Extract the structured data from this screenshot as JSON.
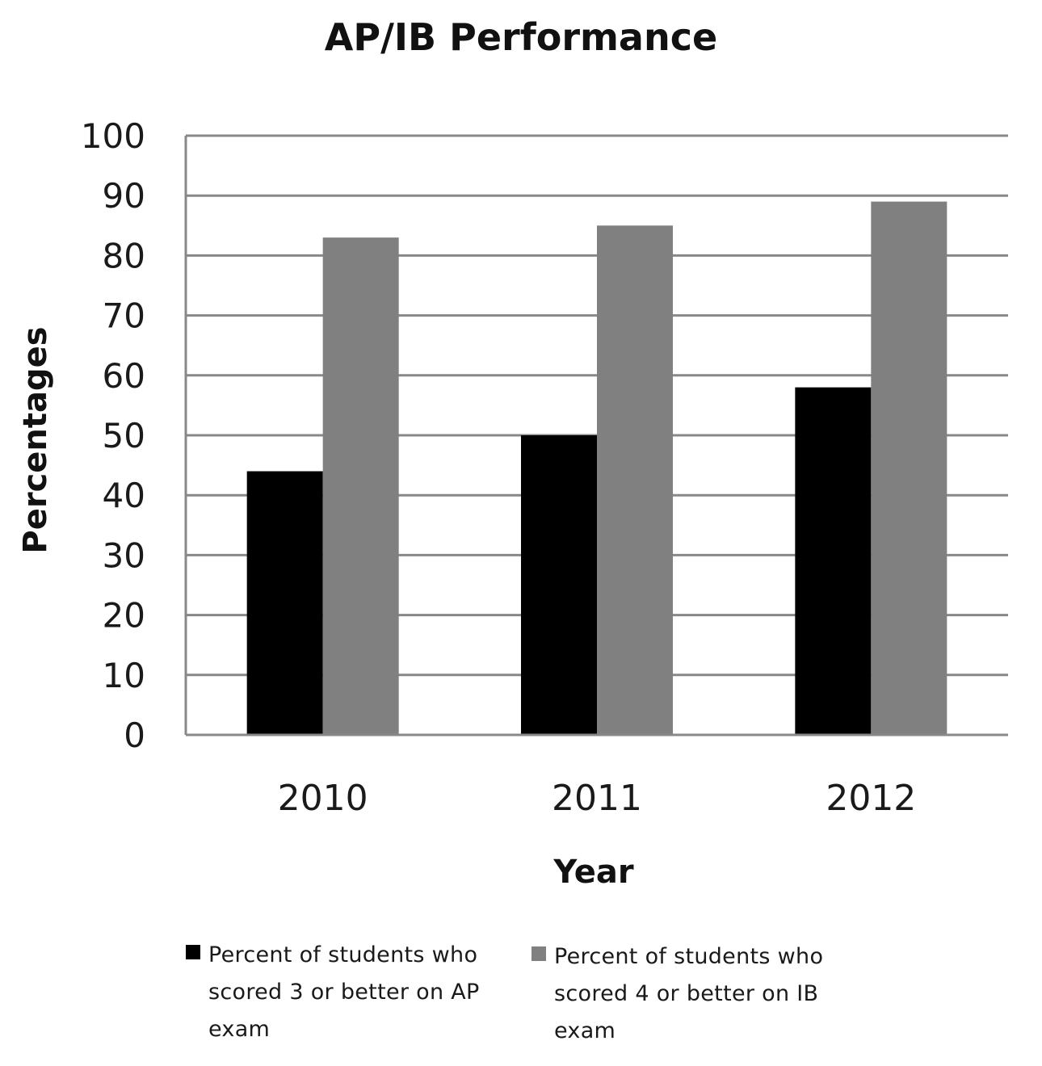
{
  "chart_data": {
    "type": "bar",
    "title": "AP/IB Performance",
    "xlabel": "Year",
    "ylabel": "Percentages",
    "categories": [
      "2010",
      "2011",
      "2012"
    ],
    "series": [
      {
        "name": "Percent of students who scored 3 or better on AP exam",
        "color": "#000000",
        "values": [
          44,
          50,
          58
        ]
      },
      {
        "name": "Percent of students who scored 4 or better on IB exam",
        "color": "#808080",
        "values": [
          83,
          85,
          89
        ]
      }
    ],
    "ylim": [
      0,
      100
    ],
    "yticks": [
      0,
      10,
      20,
      30,
      40,
      50,
      60,
      70,
      80,
      90,
      100
    ],
    "grid": true,
    "legend_position": "bottom"
  },
  "legend": {
    "items": [
      {
        "text": "Percent of students who\nscored 3 or better on AP\nexam",
        "color": "#000000"
      },
      {
        "text": "Percent of students who\nscored 4 or better on IB\nexam",
        "color": "#808080"
      }
    ]
  }
}
